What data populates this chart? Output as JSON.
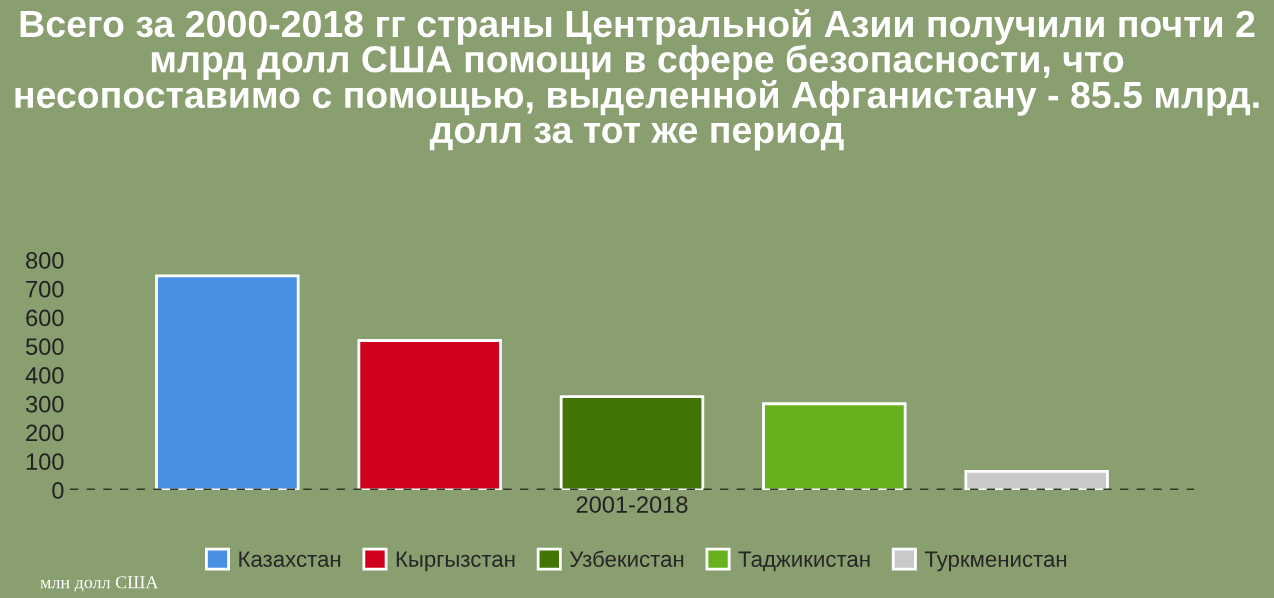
{
  "chart_data": {
    "type": "bar",
    "title": "Всего за 2000-2018 гг страны Центральной Азии получили почти 2 млрд долл США помощи в сфере безопасности, что несопоставимо с помощью, выделенной Афганистану - 85.5 млрд. долл за тот же период",
    "categories": [
      "2001-2018"
    ],
    "series": [
      {
        "name": "Казахстан",
        "color": "#4a90e2",
        "values": [
          745
        ]
      },
      {
        "name": "Кыргызстан",
        "color": "#d0021b",
        "values": [
          520
        ]
      },
      {
        "name": "Узбекистан",
        "color": "#417505",
        "values": [
          325
        ]
      },
      {
        "name": "Таджикистан",
        "color": "#67b01e",
        "values": [
          300
        ]
      },
      {
        "name": "Туркменистан",
        "color": "#c9c9c9",
        "values": [
          65
        ]
      }
    ],
    "ylim": [
      0,
      800
    ],
    "yticks": [
      0,
      100,
      200,
      300,
      400,
      500,
      600,
      700,
      800
    ],
    "ref_lines": [
      {
        "axis": "y",
        "value": 0,
        "label": null,
        "color": "#2e3a24",
        "line_style": "dashed"
      }
    ],
    "annotations": [
      "млн долл США"
    ],
    "grid": false,
    "legend": "bottom"
  }
}
